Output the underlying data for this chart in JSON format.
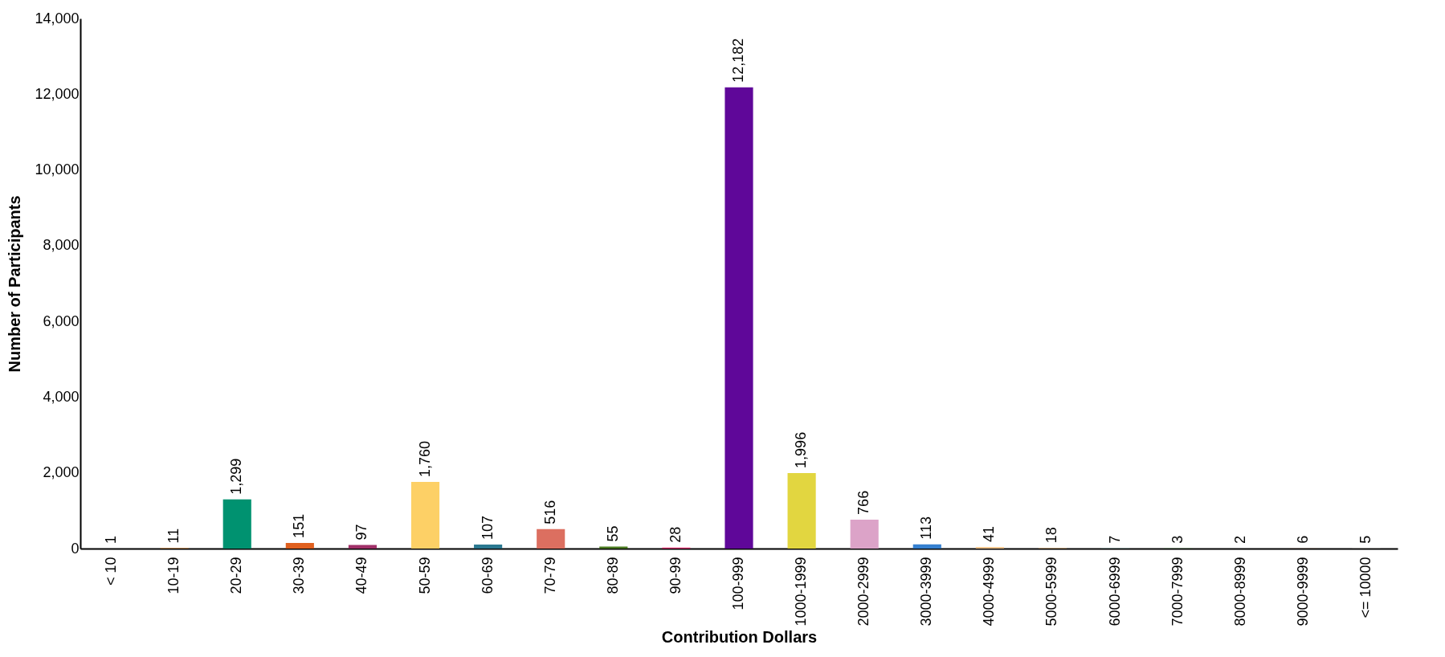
{
  "chart_data": {
    "type": "bar",
    "xlabel": "Contribution Dollars",
    "ylabel": "Number of Participants",
    "categories": [
      "< 10",
      "10-19",
      "20-29",
      "30-39",
      "40-49",
      "50-59",
      "60-69",
      "70-79",
      "80-89",
      "90-99",
      "100-999",
      "1000-1999",
      "2000-2999",
      "3000-3999",
      "4000-4999",
      "5000-5999",
      "6000-6999",
      "7000-7999",
      "8000-8999",
      "9000-9999",
      "<= 10000"
    ],
    "values": [
      1,
      11,
      1299,
      151,
      97,
      1760,
      107,
      516,
      55,
      28,
      12182,
      1996,
      766,
      113,
      41,
      18,
      7,
      3,
      2,
      6,
      5
    ],
    "value_labels": [
      "1",
      "11",
      "1,299",
      "151",
      "97",
      "1,760",
      "107",
      "516",
      "55",
      "28",
      "12,182",
      "1,996",
      "766",
      "113",
      "41",
      "18",
      "7",
      "3",
      "2",
      "6",
      "5"
    ],
    "colors": [
      "#4e79a7",
      "#f28e2b",
      "#009270",
      "#e0601e",
      "#a03068",
      "#fdd066",
      "#2a7890",
      "#dc6f60",
      "#4a7a20",
      "#e03070",
      "#5f0799",
      "#e2d640",
      "#dca3c8",
      "#3580d0",
      "#f8c890",
      "#c8a070",
      "#76b7b2",
      "#59a14f",
      "#b07aa1",
      "#9c755f",
      "#bab0ac"
    ],
    "ylim": [
      0,
      14000
    ],
    "yticks": [
      0,
      {
        "value": 2000,
        "label": "2,000"
      },
      {
        "value": 4000,
        "label": "4,000"
      },
      {
        "value": 6000,
        "label": "6,000"
      },
      {
        "value": 8000,
        "label": "8,000"
      },
      {
        "value": 10000,
        "label": "10,000"
      },
      {
        "value": 12000,
        "label": "12,000"
      },
      {
        "value": 14000,
        "label": "14,000"
      }
    ],
    "grid": false
  }
}
